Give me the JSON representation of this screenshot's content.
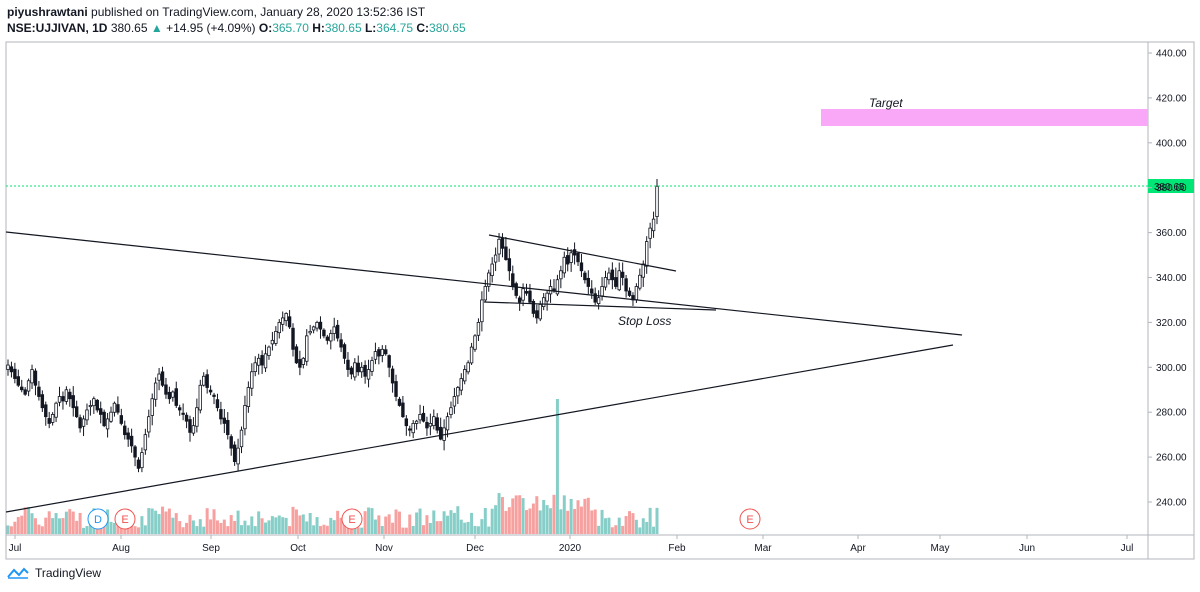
{
  "header": {
    "publisher": "piyushrawtani",
    "published_text": "published on TradingView.com, January 28, 2020 13:52:36 IST",
    "symbol": "NSE:UJJIVAN, 1D",
    "last": "380.65",
    "change": "+14.95 (+4.09%)",
    "o_label": "O:",
    "o_value": "365.70",
    "h_label": "H:",
    "h_value": "380.65",
    "l_label": "L:",
    "l_value": "364.75",
    "c_label": "C:",
    "c_value": "380.65"
  },
  "footer": {
    "brand": "TradingView"
  },
  "colors": {
    "up": "#26a69a",
    "down": "#ef5350",
    "accent": "#00e676",
    "target": "#f9a7f7"
  },
  "chart_data": {
    "type": "candlestick",
    "y_ticks": [
      "440.00",
      "420.00",
      "400.00",
      "380.00",
      "360.00",
      "340.00",
      "320.00",
      "300.00",
      "280.00",
      "260.00",
      "240.00"
    ],
    "x_ticks": [
      "Jul",
      "Aug",
      "Sep",
      "Oct",
      "Nov",
      "Dec",
      "2020",
      "Feb",
      "Mar",
      "Apr",
      "May",
      "Jun",
      "Jul"
    ],
    "ylim": [
      228,
      440
    ],
    "last_price_label": "380.65",
    "last_price": 380.65,
    "annotations": {
      "target": "Target",
      "stop_loss": "Stop Loss"
    },
    "event_markers": [
      "D",
      "E",
      "E",
      "E"
    ],
    "close": [
      301,
      298,
      295,
      292,
      290,
      288,
      294,
      299,
      292,
      287,
      282,
      278,
      275,
      279,
      284,
      287,
      285,
      290,
      286,
      282,
      278,
      273,
      277,
      281,
      283,
      286,
      281,
      279,
      274,
      277,
      280,
      284,
      280,
      275,
      270,
      268,
      265,
      260,
      255,
      262,
      270,
      278,
      286,
      293,
      297,
      292,
      288,
      286,
      289,
      283,
      281,
      279,
      276,
      271,
      274,
      282,
      292,
      296,
      291,
      289,
      287,
      282,
      277,
      275,
      270,
      264,
      258,
      264,
      272,
      283,
      291,
      298,
      302,
      304,
      301,
      306,
      309,
      312,
      316,
      320,
      322,
      324,
      318,
      308,
      302,
      300,
      304,
      314,
      316,
      318,
      320,
      317,
      314,
      312,
      315,
      318,
      313,
      309,
      304,
      299,
      297,
      302,
      298,
      300,
      296,
      299,
      303,
      307,
      305,
      308,
      306,
      300,
      293,
      287,
      283,
      278,
      274,
      272,
      275,
      276,
      279,
      276,
      273,
      275,
      278,
      272,
      268,
      273,
      278,
      282,
      287,
      291,
      295,
      299,
      302,
      309,
      314,
      320,
      330,
      336,
      342,
      346,
      350,
      357,
      353,
      348,
      343,
      336,
      332,
      329,
      335,
      333,
      329,
      324,
      322,
      328,
      331,
      333,
      336,
      334,
      339,
      343,
      349,
      346,
      351,
      350,
      347,
      343,
      339,
      336,
      333,
      329,
      331,
      336,
      340,
      342,
      339,
      336,
      343,
      340,
      334,
      332,
      330,
      336,
      341,
      346,
      356,
      362,
      366,
      380.65
    ],
    "volume_note": "volume bars drawn proportional, scaled relative"
  }
}
